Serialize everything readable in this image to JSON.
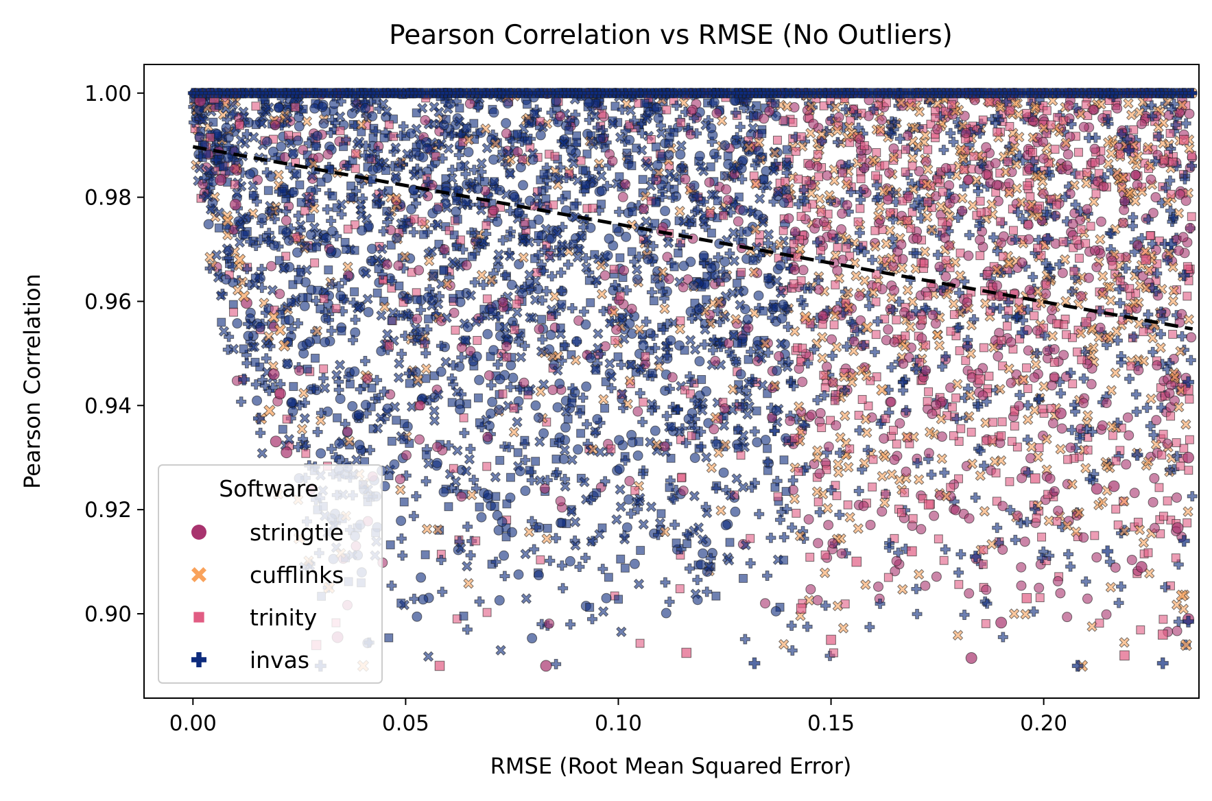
{
  "colors": {
    "stringtie": "#a8336e",
    "cufflinks": "#f9a25b",
    "trinity": "#e15c83",
    "invas": "#0d2b7d",
    "trend": "#000000"
  },
  "chart_data": {
    "type": "scatter",
    "title": "Pearson Correlation vs RMSE (No Outliers)",
    "xlabel": "RMSE (Root Mean Squared Error)",
    "ylabel": "Pearson Correlation",
    "xlim": [
      -0.0115,
      0.2365
    ],
    "ylim": [
      0.8838,
      1.0055
    ],
    "xticks": [
      0.0,
      0.05,
      0.1,
      0.15,
      0.2
    ],
    "xtick_labels": [
      "0.00",
      "0.05",
      "0.10",
      "0.15",
      "0.20"
    ],
    "yticks": [
      0.9,
      0.92,
      0.94,
      0.96,
      0.98,
      1.0
    ],
    "ytick_labels": [
      "0.90",
      "0.92",
      "0.94",
      "0.96",
      "0.98",
      "1.00"
    ],
    "grid": false,
    "legend": {
      "title": "Software",
      "placement": "lower-left",
      "entries": [
        {
          "name": "stringtie",
          "marker": "circle"
        },
        {
          "name": "cufflinks",
          "marker": "x"
        },
        {
          "name": "trinity",
          "marker": "square"
        },
        {
          "name": "invas",
          "marker": "plus"
        }
      ]
    },
    "x_range": [
      0.0,
      0.235
    ],
    "y_range": [
      0.889,
      1.0
    ],
    "trend_line": {
      "style": "dashed",
      "x": [
        0.0,
        0.235
      ],
      "y": [
        0.9897,
        0.9547
      ]
    },
    "series": [
      {
        "name": "stringtie",
        "marker": "circle",
        "sample_points": [
          [
            0.0017,
            0.9985
          ],
          [
            0.0065,
            0.9833
          ],
          [
            0.01,
            0.9786
          ],
          [
            0.0126,
            0.9597
          ],
          [
            0.019,
            0.946
          ],
          [
            0.0195,
            0.9331
          ],
          [
            0.0205,
            0.9423
          ],
          [
            0.022,
            0.931
          ],
          [
            0.034,
            0.8955
          ],
          [
            0.083,
            0.89
          ],
          [
            0.183,
            0.8915
          ],
          [
            0.19,
            0.8983
          ],
          [
            0.204,
            0.9385
          ],
          [
            0.2125,
            0.924
          ],
          [
            0.2165,
            0.9245
          ],
          [
            0.223,
            0.909
          ],
          [
            0.234,
            0.899
          ],
          [
            0.234,
            0.93
          ],
          [
            0.2315,
            0.9165
          ]
        ]
      },
      {
        "name": "cufflinks",
        "marker": "x",
        "sample_points": [
          [
            0.0082,
            0.9755
          ],
          [
            0.011,
            0.968
          ],
          [
            0.012,
            0.961
          ],
          [
            0.019,
            0.957
          ],
          [
            0.0205,
            0.9545
          ],
          [
            0.0215,
            0.9515
          ],
          [
            0.018,
            0.939
          ],
          [
            0.016,
            0.9375
          ],
          [
            0.025,
            0.9145
          ],
          [
            0.032,
            0.905
          ],
          [
            0.04,
            0.89
          ],
          [
            0.144,
            0.957
          ],
          [
            0.1585,
            0.955
          ],
          [
            0.162,
            0.943
          ],
          [
            0.226,
            0.9555
          ],
          [
            0.2325,
            0.9035
          ],
          [
            0.2335,
            0.894
          ],
          [
            0.209,
            0.89
          ]
        ]
      },
      {
        "name": "trinity",
        "marker": "square",
        "sample_points": [
          [
            0.005,
            0.999
          ],
          [
            0.029,
            0.894
          ],
          [
            0.058,
            0.89
          ],
          [
            0.116,
            0.8925
          ],
          [
            0.143,
            0.901
          ],
          [
            0.156,
            0.91
          ],
          [
            0.173,
            0.921
          ],
          [
            0.185,
            0.945
          ],
          [
            0.196,
            0.903
          ],
          [
            0.21,
            0.956
          ],
          [
            0.219,
            0.892
          ],
          [
            0.224,
            0.968
          ],
          [
            0.233,
            0.991
          ],
          [
            0.234,
            0.943
          ],
          [
            0.228,
            0.896
          ],
          [
            0.198,
            0.926
          ],
          [
            0.169,
            0.912
          ],
          [
            0.15,
            0.895
          ]
        ]
      },
      {
        "name": "invas",
        "marker": "plus",
        "sample_points": [
          [
            0.012,
            0.945
          ],
          [
            0.0155,
            0.9375
          ],
          [
            0.03,
            0.89
          ],
          [
            0.132,
            0.8905
          ],
          [
            0.184,
            0.911
          ],
          [
            0.208,
            0.89
          ],
          [
            0.215,
            0.912
          ],
          [
            0.222,
            0.9305
          ],
          [
            0.228,
            0.8905
          ],
          [
            0.233,
            0.914
          ],
          [
            0.234,
            0.8985
          ],
          [
            0.234,
            0.9445
          ],
          [
            0.233,
            0.965
          ],
          [
            0.23,
            0.971
          ],
          [
            0.22,
            0.989
          ],
          [
            0.195,
            0.954
          ],
          [
            0.17,
            0.947
          ],
          [
            0.201,
            0.972
          ]
        ]
      }
    ]
  }
}
